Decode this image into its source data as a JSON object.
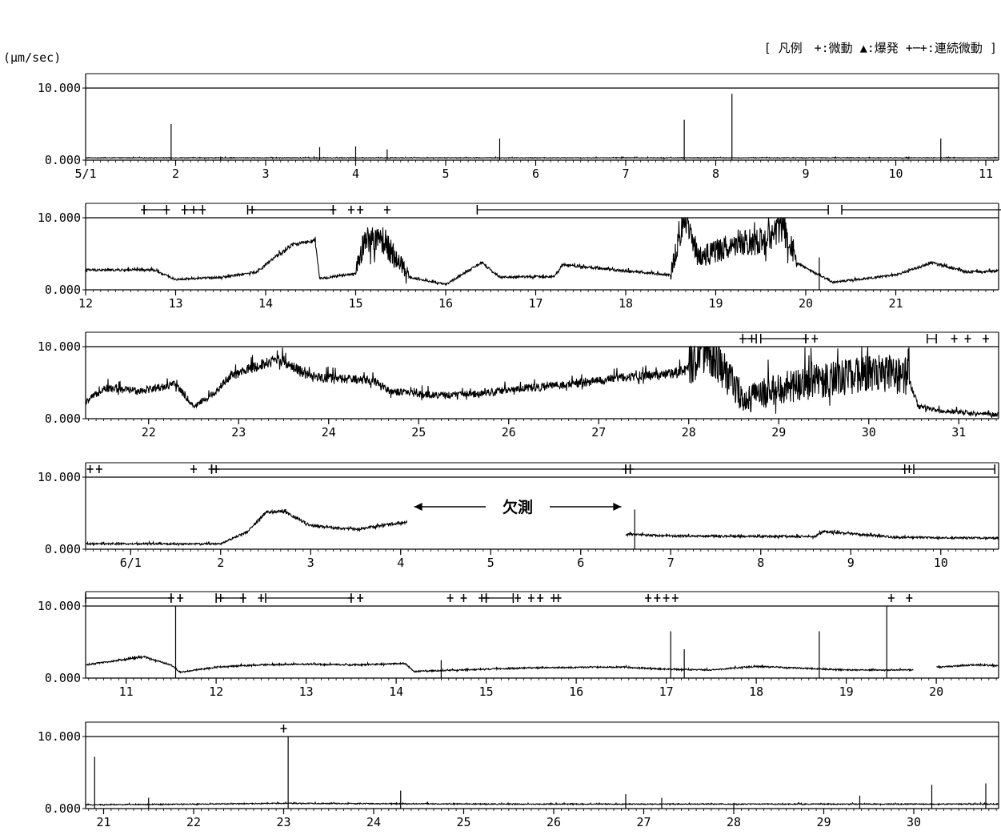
{
  "chart_data": {
    "type": "line",
    "unit_label": "(μm/sec)",
    "legend": "[ 凡例　+:微動 ▲:爆発 +─+:連続微動 ]",
    "ylim": [
      0,
      10
    ],
    "y_tick_labels": [
      "10.000",
      "0.000"
    ],
    "gap_label": "欠測",
    "colors": {
      "trace": "#000000",
      "axis": "#000000",
      "background": "#ffffff"
    },
    "panels": [
      {
        "start_day": 1,
        "day_labels": [
          "5/1",
          "2",
          "3",
          "4",
          "5",
          "6",
          "7",
          "8",
          "9",
          "10",
          "11"
        ],
        "baseline": 0.1,
        "noise": 0.15,
        "features": [
          [
            1.2,
            0.2,
            "r"
          ],
          [
            1.95,
            5.0,
            "s"
          ],
          [
            2.5,
            0.5,
            "s"
          ],
          [
            3.6,
            1.8,
            "s"
          ],
          [
            4.0,
            1.9,
            "s"
          ],
          [
            4.35,
            1.5,
            "s"
          ],
          [
            5.6,
            3.0,
            "s"
          ],
          [
            7.65,
            5.6,
            "s"
          ],
          [
            8.18,
            9.2,
            "s"
          ],
          [
            10.5,
            3.0,
            "s"
          ]
        ],
        "events": [
          {
            "type": "tremor",
            "days": []
          },
          {
            "type": "continuous",
            "spans": []
          }
        ]
      },
      {
        "start_day": 11,
        "day_labels": [
          "12",
          "13",
          "14",
          "15",
          "16",
          "17",
          "18",
          "19",
          "20",
          "21"
        ],
        "baseline": 0.2,
        "noise": 0.35,
        "features": [
          [
            11.75,
            2.5,
            "r"
          ],
          [
            12.0,
            1.2,
            "r"
          ],
          [
            12.5,
            1.5,
            "r"
          ],
          [
            12.9,
            2.2,
            "r"
          ],
          [
            13.1,
            4.2,
            "r"
          ],
          [
            13.3,
            6.0,
            "r"
          ],
          [
            13.55,
            6.5,
            "r"
          ],
          [
            13.6,
            1.3,
            "r"
          ],
          [
            14.0,
            2.0,
            "r"
          ],
          [
            14.1,
            6.0,
            "b"
          ],
          [
            14.3,
            6.0,
            "b"
          ],
          [
            14.6,
            1.5,
            "r"
          ],
          [
            15.0,
            0.5,
            "r"
          ],
          [
            15.4,
            3.5,
            "r"
          ],
          [
            15.6,
            1.5,
            "r"
          ],
          [
            16.2,
            1.6,
            "r"
          ],
          [
            16.3,
            3.2,
            "r"
          ],
          [
            17.5,
            1.8,
            "r"
          ],
          [
            17.65,
            9.8,
            "b"
          ],
          [
            17.8,
            3.8,
            "r"
          ],
          [
            18.3,
            6.0,
            "b"
          ],
          [
            18.55,
            6.0,
            "b"
          ],
          [
            18.75,
            8.3,
            "b"
          ],
          [
            18.9,
            3.5,
            "r"
          ],
          [
            19.15,
            4.5,
            "s"
          ],
          [
            19.3,
            0.8,
            "r"
          ],
          [
            20.0,
            1.8,
            "r"
          ],
          [
            20.4,
            3.5,
            "r"
          ],
          [
            20.8,
            2.2,
            "r"
          ],
          [
            21.4,
            2.5,
            "r"
          ]
        ],
        "events": [
          {
            "type": "tremor",
            "days": [
              11.65,
              11.9,
              12.1,
              12.2,
              12.3,
              12.85,
              13.75,
              13.95,
              14.05,
              14.35
            ]
          },
          {
            "type": "continuous",
            "spans": [
              [
                11.65,
                11.9
              ],
              [
                12.1,
                12.3
              ],
              [
                12.8,
                13.75
              ],
              [
                15.35,
                19.25
              ],
              [
                19.4,
                21.4
              ]
            ]
          }
        ]
      },
      {
        "start_day": 21.3,
        "day_labels": [
          "22",
          "23",
          "24",
          "25",
          "26",
          "27",
          "28",
          "29",
          "30",
          "31"
        ],
        "baseline": 0.1,
        "noise": 0.9,
        "features": [
          [
            21.3,
            2.0,
            "r"
          ],
          [
            21.5,
            4.0,
            "r"
          ],
          [
            21.9,
            3.6,
            "r"
          ],
          [
            22.3,
            4.5,
            "r"
          ],
          [
            22.5,
            1.5,
            "r"
          ],
          [
            22.7,
            3.0,
            "r"
          ],
          [
            22.9,
            5.5,
            "r"
          ],
          [
            23.1,
            6.5,
            "r"
          ],
          [
            23.45,
            8.0,
            "r"
          ],
          [
            23.8,
            5.5,
            "r"
          ],
          [
            24.5,
            5.0,
            "r"
          ],
          [
            24.7,
            3.5,
            "r"
          ],
          [
            25.2,
            3.0,
            "r"
          ],
          [
            25.6,
            3.2,
            "r"
          ],
          [
            26.2,
            4.0,
            "r"
          ],
          [
            26.7,
            4.5,
            "r"
          ],
          [
            27.3,
            5.5,
            "r"
          ],
          [
            27.8,
            6.0,
            "r"
          ],
          [
            28.0,
            6.5,
            "r"
          ],
          [
            28.2,
            9.0,
            "b"
          ],
          [
            28.4,
            5.5,
            "b"
          ],
          [
            28.6,
            2.0,
            "r"
          ],
          [
            29.0,
            3.5,
            "b"
          ],
          [
            30.0,
            5.5,
            "b"
          ],
          [
            30.45,
            5.0,
            "r"
          ],
          [
            30.55,
            1.5,
            "r"
          ],
          [
            30.8,
            0.9,
            "r"
          ],
          [
            31.5,
            0.3,
            "r"
          ]
        ],
        "events": [
          {
            "type": "tremor",
            "days": [
              28.6,
              28.7,
              29.3,
              29.4,
              30.95,
              31.1,
              31.3
            ]
          },
          {
            "type": "continuous",
            "spans": [
              [
                28.6,
                28.75
              ],
              [
                28.8,
                29.3
              ],
              [
                30.65,
                30.75
              ]
            ]
          }
        ]
      },
      {
        "start_day": 31.5,
        "day_labels": [
          "6/1",
          "2",
          "3",
          "4",
          "5",
          "6",
          "7",
          "8",
          "9",
          "10"
        ],
        "baseline": 0.2,
        "noise": 0.35,
        "features": [
          [
            31.5,
            0.5,
            "r"
          ],
          [
            33.0,
            0.5,
            "r"
          ],
          [
            33.3,
            2.2,
            "r"
          ],
          [
            33.5,
            4.8,
            "r"
          ],
          [
            33.7,
            5.0,
            "r"
          ],
          [
            34.0,
            3.0,
            "r"
          ],
          [
            34.5,
            2.5,
            "r"
          ],
          [
            35.05,
            3.5,
            "r"
          ],
          [
            35.07,
            null,
            "r"
          ],
          [
            37.5,
            null,
            "r"
          ],
          [
            37.52,
            1.8,
            "r"
          ],
          [
            37.6,
            5.5,
            "s"
          ],
          [
            38.0,
            1.6,
            "r"
          ],
          [
            39.6,
            1.5,
            "r"
          ],
          [
            39.7,
            2.2,
            "r"
          ],
          [
            40.1,
            1.8,
            "r"
          ],
          [
            40.5,
            1.4,
            "r"
          ],
          [
            41.6,
            1.3,
            "r"
          ]
        ],
        "events": [
          {
            "type": "tremor",
            "days": [
              31.55,
              31.65,
              32.7,
              32.9,
              32.95,
              37.5,
              37.55,
              40.6,
              40.65
            ]
          },
          {
            "type": "continuous",
            "spans": [
              [
                32.9,
                37.5
              ],
              [
                37.55,
                40.6
              ],
              [
                40.7,
                41.6
              ]
            ]
          }
        ]
      },
      {
        "start_day": 41.55,
        "day_labels": [
          "11",
          "12",
          "13",
          "14",
          "15",
          "16",
          "17",
          "18",
          "19",
          "20"
        ],
        "baseline": 0.3,
        "noise": 0.25,
        "features": [
          [
            41.55,
            1.5,
            "r"
          ],
          [
            42.2,
            2.6,
            "r"
          ],
          [
            42.5,
            1.5,
            "r"
          ],
          [
            42.55,
            10.0,
            "s"
          ],
          [
            42.6,
            0.5,
            "r"
          ],
          [
            43.0,
            1.2,
            "r"
          ],
          [
            43.5,
            1.5,
            "r"
          ],
          [
            44.0,
            1.6,
            "r"
          ],
          [
            44.6,
            1.5,
            "r"
          ],
          [
            45.1,
            1.7,
            "r"
          ],
          [
            45.2,
            0.6,
            "r"
          ],
          [
            45.5,
            2.5,
            "s"
          ],
          [
            46.5,
            1.1,
            "r"
          ],
          [
            47.5,
            1.2,
            "r"
          ],
          [
            48.0,
            0.9,
            "r"
          ],
          [
            48.05,
            6.5,
            "s"
          ],
          [
            48.2,
            4.0,
            "s"
          ],
          [
            48.5,
            0.8,
            "r"
          ],
          [
            49.0,
            1.3,
            "r"
          ],
          [
            49.7,
            6.5,
            "s"
          ],
          [
            50.0,
            0.8,
            "r"
          ],
          [
            50.45,
            10.0,
            "s"
          ],
          [
            50.7,
            0.8,
            "r"
          ],
          [
            50.75,
            null,
            "r"
          ],
          [
            51.0,
            null,
            "r"
          ],
          [
            51.05,
            1.2,
            "r"
          ],
          [
            51.4,
            1.5,
            "r"
          ],
          [
            51.7,
            1.4,
            "r"
          ]
        ],
        "events": [
          {
            "type": "tremor",
            "days": [
              42.5,
              42.6,
              43.05,
              43.3,
              43.5,
              44.5,
              44.6,
              45.6,
              45.75,
              45.95,
              46.0,
              46.35,
              46.5,
              46.6,
              46.75,
              46.8,
              47.8,
              47.9,
              48.0,
              48.1,
              50.5,
              50.7
            ]
          },
          {
            "type": "continuous",
            "spans": [
              [
                41.55,
                42.5
              ],
              [
                43.0,
                43.3
              ],
              [
                43.55,
                44.5
              ],
              [
                46.0,
                46.3
              ]
            ]
          }
        ]
      },
      {
        "start_day": 51.8,
        "day_labels": [
          "21",
          "22",
          "23",
          "24",
          "25",
          "26",
          "27",
          "28",
          "29",
          "30"
        ],
        "baseline": 0.1,
        "noise": 0.2,
        "features": [
          [
            51.8,
            0.4,
            "r"
          ],
          [
            51.9,
            7.2,
            "s"
          ],
          [
            52.5,
            1.5,
            "s"
          ],
          [
            53.0,
            0.5,
            "r"
          ],
          [
            54.0,
            0.6,
            "r"
          ],
          [
            54.05,
            10.0,
            "s"
          ],
          [
            55.3,
            2.5,
            "s"
          ],
          [
            56.6,
            0.5,
            "r"
          ],
          [
            57.8,
            2.0,
            "s"
          ],
          [
            58.2,
            1.5,
            "s"
          ],
          [
            59.0,
            0.8,
            "s"
          ],
          [
            60.4,
            1.8,
            "s"
          ],
          [
            61.2,
            3.3,
            "s"
          ],
          [
            61.8,
            3.5,
            "s"
          ]
        ],
        "events": [
          {
            "type": "tremor",
            "days": [
              54.0
            ]
          },
          {
            "type": "continuous",
            "spans": []
          }
        ]
      }
    ]
  }
}
